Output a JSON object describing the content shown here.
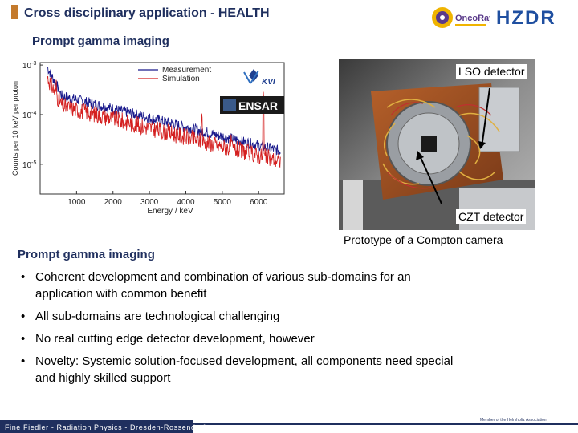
{
  "header": {
    "title": "Cross disciplinary application - HEALTH",
    "subtitle": "Prompt gamma imaging"
  },
  "logos": {
    "oncoray": "OncoRay",
    "hzdr": "HZDR",
    "kvi": "KVI",
    "ensar": "ENSAR"
  },
  "photo": {
    "label_top": "LSO detector",
    "label_bottom": "CZT detector",
    "caption": "Prototype of a Compton camera"
  },
  "section": {
    "heading": "Prompt gamma imaging",
    "bullets": [
      "Coherent development and combination of various sub-domains for an application with common benefit",
      "All sub-domains are technological challenging",
      "No real cutting edge detector development, however",
      "Novelty: Systemic solution-focused development, all components need special and highly skilled support"
    ],
    "bullet_symbol": "•"
  },
  "footer": {
    "left": "Fine Fiedler - Radiation Physics - Dresden-Rossendorf",
    "right": "Member of the Helmholtz Association"
  },
  "chart_data": {
    "type": "line",
    "xlabel": "Energy / keV",
    "ylabel": "Counts per 10 keV per proton",
    "xlim": [
      0,
      6700
    ],
    "ylim_log10": [
      -5.6,
      -2.95
    ],
    "log_y": true,
    "x_ticks": [
      "1000",
      "2000",
      "3000",
      "4000",
      "5000",
      "6000"
    ],
    "y_ticks": [
      {
        "base": "10",
        "exp": "-3"
      },
      {
        "base": "10",
        "exp": "-4"
      },
      {
        "base": "10",
        "exp": "-5"
      }
    ],
    "legend_position": "top-right",
    "series": [
      {
        "name": "Measurement",
        "color": "#1a1a8c",
        "peaks": []
      },
      {
        "name": "Simulation",
        "color": "#d42020",
        "peaks": [
          [
            440,
            -3.3
          ],
          [
            718,
            -3.8
          ],
          [
            1635,
            -4.2
          ],
          [
            2000,
            -4.1
          ],
          [
            2313,
            -4.3
          ],
          [
            3700,
            -4.5
          ],
          [
            4440,
            -3.9
          ],
          [
            5240,
            -4.4
          ],
          [
            6130,
            -3.5
          ]
        ]
      }
    ]
  }
}
